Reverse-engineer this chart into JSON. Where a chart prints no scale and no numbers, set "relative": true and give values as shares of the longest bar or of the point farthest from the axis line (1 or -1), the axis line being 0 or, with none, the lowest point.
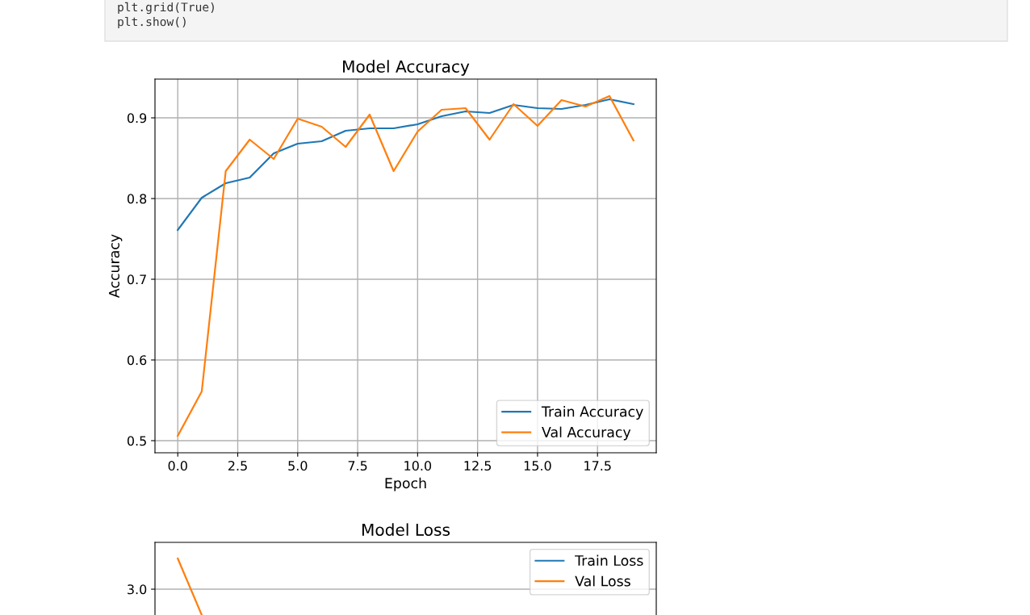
{
  "chart_data": [
    {
      "type": "line",
      "title": "Model Accuracy",
      "xlabel": "Epoch",
      "ylabel": "Accuracy",
      "x": [
        0,
        1,
        2,
        3,
        4,
        5,
        6,
        7,
        8,
        9,
        10,
        11,
        12,
        13,
        14,
        15,
        16,
        17,
        18,
        19
      ],
      "series": [
        {
          "name": "Train Accuracy",
          "color": "#1f77b4",
          "values": [
            0.761,
            0.801,
            0.819,
            0.826,
            0.856,
            0.868,
            0.871,
            0.884,
            0.887,
            0.887,
            0.892,
            0.902,
            0.908,
            0.906,
            0.916,
            0.912,
            0.911,
            0.916,
            0.923,
            0.917
          ]
        },
        {
          "name": "Val Accuracy",
          "color": "#ff7f0e",
          "values": [
            0.506,
            0.561,
            0.834,
            0.873,
            0.849,
            0.899,
            0.889,
            0.864,
            0.904,
            0.834,
            0.883,
            0.91,
            0.912,
            0.873,
            0.917,
            0.89,
            0.922,
            0.914,
            0.927,
            0.872
          ]
        }
      ],
      "xlim": [
        -0.95,
        19.95
      ],
      "xticks": [
        {
          "value": 0,
          "label": "0.0"
        },
        2.5,
        {
          "value": 5,
          "label": "5.0"
        },
        7.5,
        {
          "value": 10,
          "label": "10.0"
        },
        12.5,
        {
          "value": 15,
          "label": "15.0"
        },
        17.5
      ],
      "ylim": [
        0.485,
        0.948
      ],
      "yticks": [
        0.5,
        0.6,
        0.7,
        0.8,
        0.9
      ],
      "grid": true,
      "legend": "bottom right",
      "marker": "none",
      "line_style": "solid",
      "annotations": [
        "plt.grid(True)",
        "plt.show()"
      ]
    },
    {
      "type": "line",
      "title": "Model Loss",
      "categories": [
        null,
        null,
        null,
        null,
        null,
        null,
        null,
        null,
        null,
        null,
        null,
        null,
        null,
        null,
        null,
        null,
        null,
        null,
        null,
        null
      ],
      "series": [
        {
          "name": "Train Loss",
          "color": "#1f77b4",
          "values": [
            null,
            null,
            null,
            null,
            null,
            null,
            null,
            null,
            null,
            null,
            null,
            null,
            null,
            null,
            null,
            null,
            null,
            null,
            null,
            null
          ]
        },
        {
          "name": "Val Loss",
          "color": "#ff7f0e",
          "values": [
            1.0,
            0.0,
            null,
            null,
            null,
            null,
            null,
            null,
            null,
            null,
            null,
            null,
            null,
            null,
            null,
            null,
            null,
            null,
            null,
            null
          ]
        }
      ],
      "relative": true,
      "ref_lines": [
        {
          "axis": "y",
          "value": 0.457,
          "label": null,
          "color": "#b0b0b0"
        }
      ],
      "annotations": [
        "3.0"
      ],
      "legend": "top right",
      "marker": "none",
      "line_style": "solid"
    }
  ]
}
